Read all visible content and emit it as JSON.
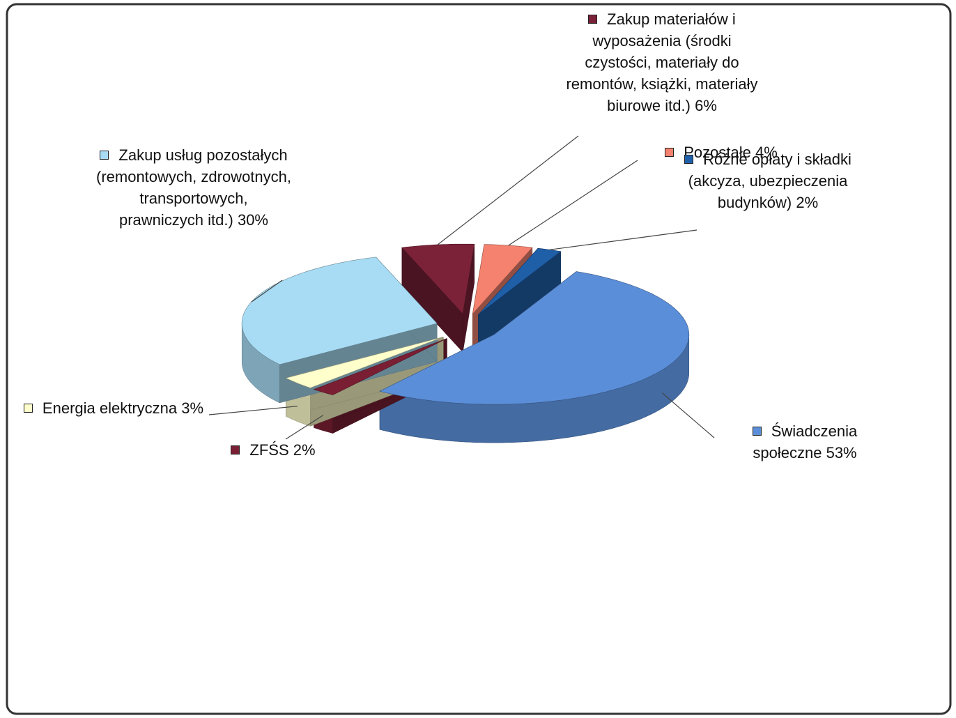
{
  "chart_data": {
    "type": "pie",
    "categories": [
      "Świadczenia społeczne",
      "ZFŚS",
      "Energia elektryczna",
      "Zakup usług pozostałych (remontowych, zdrowotnych, transportowych, prawniczych itd.)",
      "Zakup materiałów i wyposażenia (środki czystości, materiały do remontów, książki, materiały biurowe itd.)",
      "Pozostałe",
      "Różne opłaty i składki (akcyza, ubezpieczenia budynków)"
    ],
    "values": [
      53,
      2,
      3,
      30,
      6,
      4,
      2
    ],
    "value_labels": [
      "53%",
      "2%",
      "3%",
      "30%",
      "6%",
      "4%",
      "2%"
    ],
    "colors": [
      "#5b8ed8",
      "#7a1f33",
      "#ffffcc",
      "#a8dcf4",
      "#7b2238",
      "#f4826f",
      "#1f5fa8"
    ]
  }
}
